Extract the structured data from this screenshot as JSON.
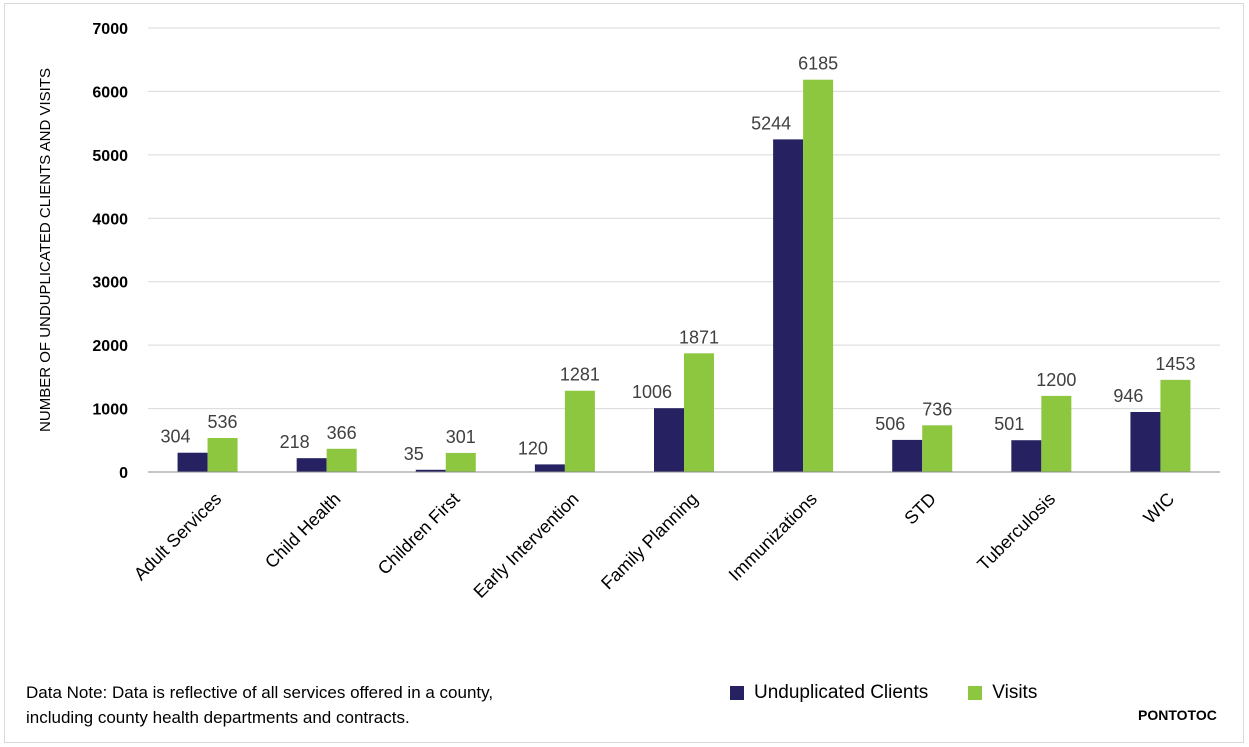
{
  "chart_data": {
    "type": "bar",
    "title": "",
    "xlabel": "",
    "ylabel": "NUMBER OF UNDUPLICATED CLIENTS AND VISITS",
    "ylim": [
      0,
      7000
    ],
    "yticks": [
      0,
      1000,
      2000,
      3000,
      4000,
      5000,
      6000,
      7000
    ],
    "grid": true,
    "categories": [
      "Adult Services",
      "Child Health",
      "Children First",
      "Early Intervention",
      "Family Planning",
      "Immunizations",
      "STD",
      "Tuberculosis",
      "WIC"
    ],
    "series": [
      {
        "name": "Unduplicated Clients",
        "color": "#262262",
        "values": [
          304,
          218,
          35,
          120,
          1006,
          5244,
          506,
          501,
          946
        ]
      },
      {
        "name": "Visits",
        "color": "#8dc63f",
        "values": [
          536,
          366,
          301,
          1281,
          1871,
          6185,
          736,
          1200,
          1453
        ]
      }
    ],
    "legend": "bottom"
  },
  "note": {
    "line1": "Data Note: Data is reflective of all services offered in a county,",
    "line2": "including county health departments and contracts."
  },
  "county": "PONTOTOC"
}
